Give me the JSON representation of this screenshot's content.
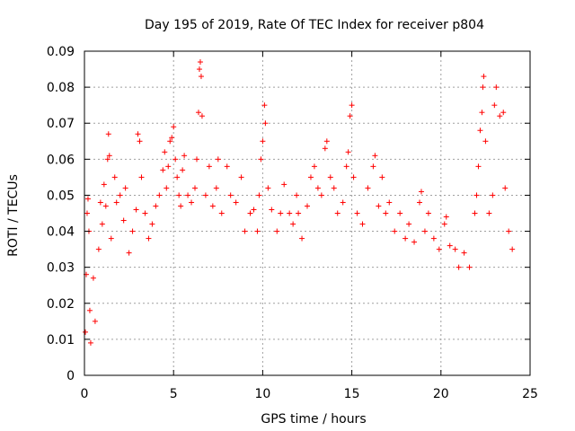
{
  "chart_data": {
    "type": "scatter",
    "title": "Day 195 of 2019, Rate Of TEC Index for receiver p804",
    "xlabel": "GPS time / hours",
    "ylabel": "ROTI / TECUs",
    "xlim": [
      0,
      25
    ],
    "ylim": [
      0,
      0.09
    ],
    "xticks": [
      0,
      5,
      10,
      15,
      20,
      25
    ],
    "xtick_labels": [
      "0",
      "5",
      "10",
      "15",
      "20",
      "25"
    ],
    "yticks": [
      0,
      0.01,
      0.02,
      0.03,
      0.04,
      0.05,
      0.06,
      0.07,
      0.08,
      0.09
    ],
    "ytick_labels": [
      "0",
      "0.01",
      "0.02",
      "0.03",
      "0.04",
      "0.05",
      "0.06",
      "0.07",
      "0.08",
      "0.09"
    ],
    "grid": true,
    "marker": "+",
    "series_color": "#ff0000",
    "series": [
      {
        "name": "p804",
        "points": [
          [
            0.05,
            0.012
          ],
          [
            0.1,
            0.028
          ],
          [
            0.15,
            0.045
          ],
          [
            0.2,
            0.049
          ],
          [
            0.25,
            0.04
          ],
          [
            0.3,
            0.018
          ],
          [
            0.35,
            0.009
          ],
          [
            0.5,
            0.027
          ],
          [
            0.6,
            0.015
          ],
          [
            0.8,
            0.035
          ],
          [
            0.9,
            0.048
          ],
          [
            1.0,
            0.042
          ],
          [
            1.1,
            0.053
          ],
          [
            1.2,
            0.047
          ],
          [
            1.3,
            0.06
          ],
          [
            1.35,
            0.067
          ],
          [
            1.4,
            0.061
          ],
          [
            1.5,
            0.038
          ],
          [
            1.7,
            0.055
          ],
          [
            1.8,
            0.048
          ],
          [
            2.0,
            0.05
          ],
          [
            2.2,
            0.043
          ],
          [
            2.3,
            0.052
          ],
          [
            2.5,
            0.034
          ],
          [
            2.7,
            0.04
          ],
          [
            2.9,
            0.046
          ],
          [
            3.0,
            0.067
          ],
          [
            3.1,
            0.065
          ],
          [
            3.2,
            0.055
          ],
          [
            3.4,
            0.045
          ],
          [
            3.6,
            0.038
          ],
          [
            3.8,
            0.042
          ],
          [
            4.0,
            0.047
          ],
          [
            4.2,
            0.05
          ],
          [
            4.4,
            0.057
          ],
          [
            4.5,
            0.062
          ],
          [
            4.6,
            0.052
          ],
          [
            4.7,
            0.058
          ],
          [
            4.8,
            0.065
          ],
          [
            4.9,
            0.066
          ],
          [
            5.0,
            0.069
          ],
          [
            5.1,
            0.06
          ],
          [
            5.2,
            0.055
          ],
          [
            5.3,
            0.05
          ],
          [
            5.4,
            0.047
          ],
          [
            5.5,
            0.057
          ],
          [
            5.6,
            0.061
          ],
          [
            5.8,
            0.05
          ],
          [
            6.0,
            0.048
          ],
          [
            6.2,
            0.052
          ],
          [
            6.3,
            0.06
          ],
          [
            6.4,
            0.073
          ],
          [
            6.45,
            0.085
          ],
          [
            6.5,
            0.087
          ],
          [
            6.55,
            0.083
          ],
          [
            6.6,
            0.072
          ],
          [
            6.8,
            0.05
          ],
          [
            7.0,
            0.058
          ],
          [
            7.2,
            0.047
          ],
          [
            7.4,
            0.052
          ],
          [
            7.5,
            0.06
          ],
          [
            7.7,
            0.045
          ],
          [
            8.0,
            0.058
          ],
          [
            8.2,
            0.05
          ],
          [
            8.5,
            0.048
          ],
          [
            8.8,
            0.055
          ],
          [
            9.0,
            0.04
          ],
          [
            9.3,
            0.045
          ],
          [
            9.5,
            0.046
          ],
          [
            9.7,
            0.04
          ],
          [
            9.8,
            0.05
          ],
          [
            9.9,
            0.06
          ],
          [
            10.0,
            0.065
          ],
          [
            10.1,
            0.075
          ],
          [
            10.15,
            0.07
          ],
          [
            10.3,
            0.052
          ],
          [
            10.5,
            0.046
          ],
          [
            10.8,
            0.04
          ],
          [
            11.0,
            0.045
          ],
          [
            11.2,
            0.053
          ],
          [
            11.5,
            0.045
          ],
          [
            11.7,
            0.042
          ],
          [
            11.9,
            0.05
          ],
          [
            12.0,
            0.045
          ],
          [
            12.2,
            0.038
          ],
          [
            12.5,
            0.047
          ],
          [
            12.7,
            0.055
          ],
          [
            12.9,
            0.058
          ],
          [
            13.1,
            0.052
          ],
          [
            13.3,
            0.05
          ],
          [
            13.5,
            0.063
          ],
          [
            13.6,
            0.065
          ],
          [
            13.8,
            0.055
          ],
          [
            14.0,
            0.052
          ],
          [
            14.2,
            0.045
          ],
          [
            14.5,
            0.048
          ],
          [
            14.7,
            0.058
          ],
          [
            14.8,
            0.062
          ],
          [
            14.9,
            0.072
          ],
          [
            15.0,
            0.075
          ],
          [
            15.1,
            0.055
          ],
          [
            15.3,
            0.045
          ],
          [
            15.6,
            0.042
          ],
          [
            15.9,
            0.052
          ],
          [
            16.2,
            0.058
          ],
          [
            16.3,
            0.061
          ],
          [
            16.5,
            0.047
          ],
          [
            16.7,
            0.055
          ],
          [
            16.9,
            0.045
          ],
          [
            17.1,
            0.048
          ],
          [
            17.4,
            0.04
          ],
          [
            17.7,
            0.045
          ],
          [
            18.0,
            0.038
          ],
          [
            18.2,
            0.042
          ],
          [
            18.5,
            0.037
          ],
          [
            18.8,
            0.048
          ],
          [
            18.9,
            0.051
          ],
          [
            19.1,
            0.04
          ],
          [
            19.3,
            0.045
          ],
          [
            19.6,
            0.038
          ],
          [
            19.9,
            0.035
          ],
          [
            20.2,
            0.042
          ],
          [
            20.3,
            0.044
          ],
          [
            20.5,
            0.036
          ],
          [
            20.8,
            0.035
          ],
          [
            21.0,
            0.03
          ],
          [
            21.3,
            0.034
          ],
          [
            21.6,
            0.03
          ],
          [
            21.9,
            0.045
          ],
          [
            22.0,
            0.05
          ],
          [
            22.1,
            0.058
          ],
          [
            22.2,
            0.068
          ],
          [
            22.3,
            0.073
          ],
          [
            22.35,
            0.08
          ],
          [
            22.4,
            0.083
          ],
          [
            22.5,
            0.065
          ],
          [
            22.7,
            0.045
          ],
          [
            22.9,
            0.05
          ],
          [
            23.0,
            0.075
          ],
          [
            23.1,
            0.08
          ],
          [
            23.3,
            0.072
          ],
          [
            23.5,
            0.073
          ],
          [
            23.6,
            0.052
          ],
          [
            23.8,
            0.04
          ],
          [
            24.0,
            0.035
          ]
        ]
      }
    ]
  }
}
